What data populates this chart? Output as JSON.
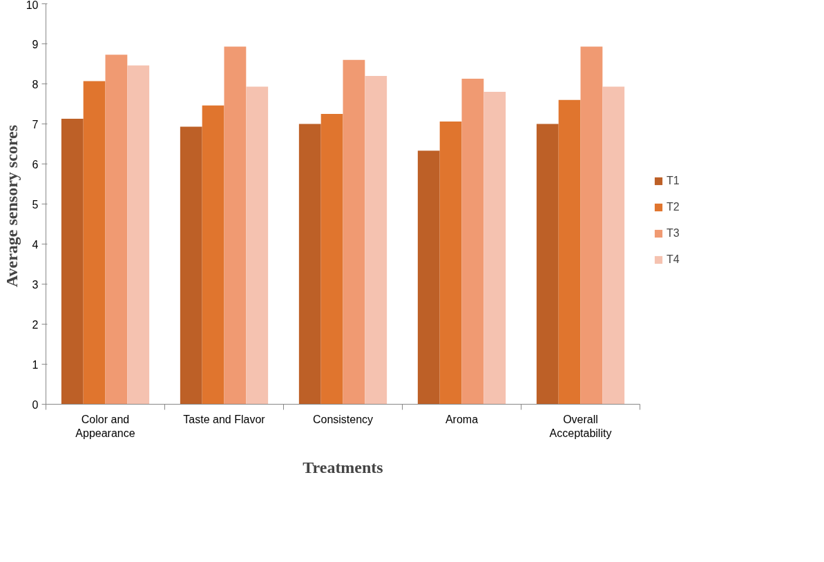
{
  "chart_data": {
    "type": "bar",
    "xlabel": "Treatments",
    "ylabel": "Average sensory  scores",
    "categories": [
      "Color and Appearance",
      "Taste and Flavor",
      "Consistency",
      "Aroma",
      "Overall Acceptability"
    ],
    "series": [
      {
        "name": "T1",
        "color": "#bd6027",
        "values": [
          7.13,
          6.93,
          7.0,
          6.33,
          7.0
        ]
      },
      {
        "name": "T2",
        "color": "#e0752e",
        "values": [
          8.07,
          7.46,
          7.25,
          7.06,
          7.6
        ]
      },
      {
        "name": "T3",
        "color": "#f09a72",
        "values": [
          8.73,
          8.93,
          8.6,
          8.13,
          8.93
        ]
      },
      {
        "name": "T4",
        "color": "#f5c2b0",
        "values": [
          8.46,
          7.93,
          8.2,
          7.8,
          7.93
        ]
      }
    ],
    "ylim": [
      0,
      10
    ],
    "yticks": [
      0,
      1,
      2,
      3,
      4,
      5,
      6,
      7,
      8,
      9,
      10
    ],
    "grid": false,
    "legend": "right"
  }
}
